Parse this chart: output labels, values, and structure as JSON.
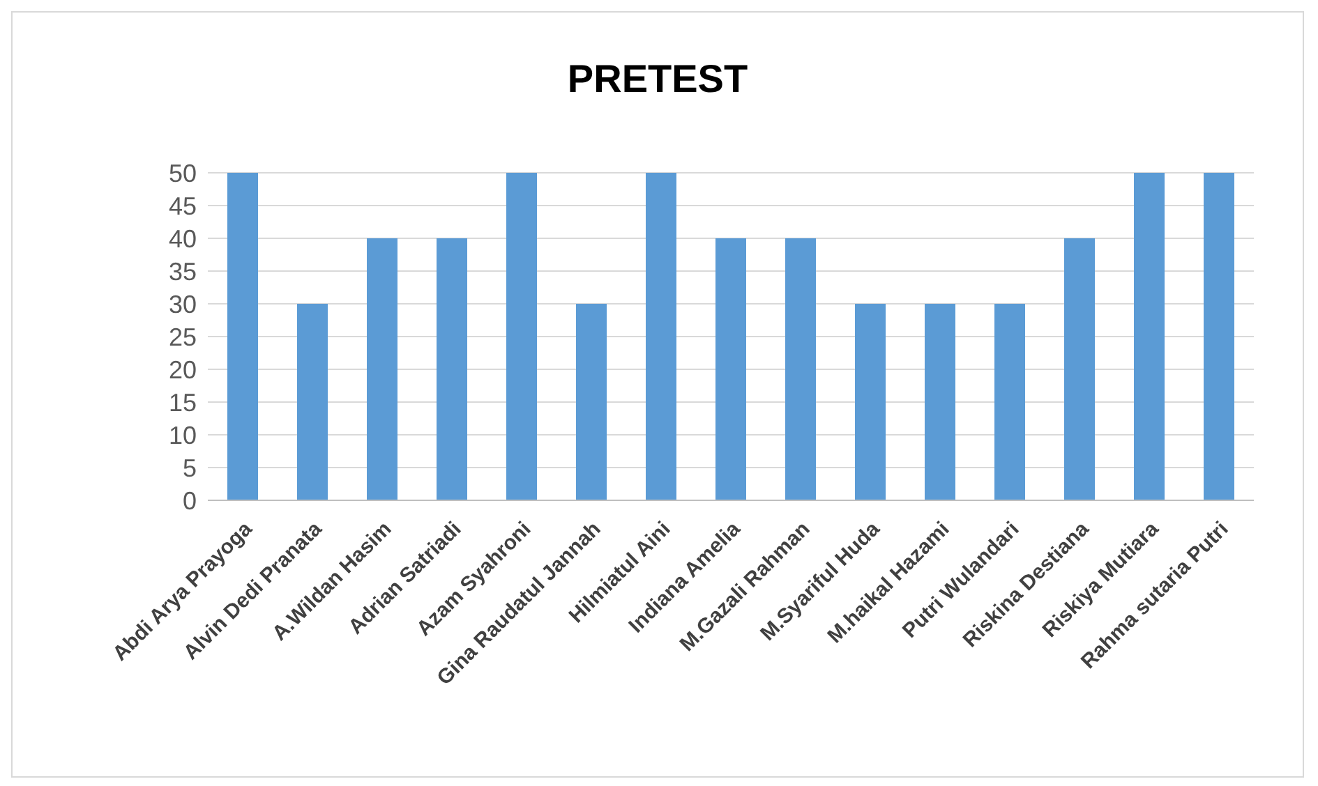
{
  "chart_data": {
    "type": "bar",
    "title": "PRETEST",
    "categories": [
      "Abdi Arya Prayoga",
      "Alvin Dedi Pranata",
      "A.Wildan Hasim",
      "Adrian Satriadi",
      "Azam Syahroni",
      "Gina Raudatul Jannah",
      "Hilmiatul Aini",
      "Indiana Amelia",
      "M.Gazali Rahman",
      "M.Syariful Huda",
      "M.haikal Hazami",
      "Putri Wulandari",
      "Riskina Destiana",
      "Riskiya Mutiara",
      "Rahma sutaria Putri"
    ],
    "values": [
      50,
      30,
      40,
      40,
      50,
      30,
      50,
      40,
      40,
      30,
      30,
      30,
      40,
      50,
      50
    ],
    "color": "#5b9bd5",
    "ylim": [
      0,
      50
    ],
    "yticks": [
      0,
      5,
      10,
      15,
      20,
      25,
      30,
      35,
      40,
      45,
      50
    ],
    "grid": "y",
    "legend": false
  }
}
